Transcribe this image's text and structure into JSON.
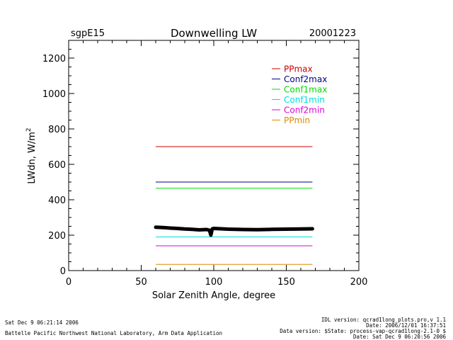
{
  "chart_data": {
    "type": "line",
    "site": "sgpE15",
    "title": "Downwelling LW",
    "date": "20001223",
    "xlabel": "Solar Zenith Angle, degree",
    "ylabel_main": "LWdn, W/m",
    "ylabel_sup": "2",
    "xlim": [
      0,
      200
    ],
    "ylim": [
      0,
      1300
    ],
    "x_ticks": [
      0,
      50,
      100,
      150,
      200
    ],
    "y_ticks": [
      0,
      200,
      400,
      600,
      800,
      1000,
      1200
    ],
    "x_minor_step": 10,
    "y_minor_step": 50,
    "legend_position": "top-right",
    "reference_lines": [
      {
        "name": "PPmax",
        "color": "#cc0000",
        "y": 700,
        "x_range": [
          60,
          168
        ]
      },
      {
        "name": "Conf2max",
        "color": "#00008b",
        "y": 500,
        "x_range": [
          60,
          168
        ]
      },
      {
        "name": "Conf1max",
        "color": "#00dd00",
        "y": 465,
        "x_range": [
          60,
          168
        ]
      },
      {
        "name": "Conf1min",
        "color": "#00dddd",
        "y": 190,
        "x_range": [
          60,
          168
        ]
      },
      {
        "name": "Conf2min",
        "color": "#dd00dd",
        "y": 140,
        "x_range": [
          60,
          168
        ]
      },
      {
        "name": "PPmin",
        "color": "#dd8800",
        "y": 35,
        "x_range": [
          60,
          168
        ]
      }
    ],
    "measured_series": {
      "color": "#000000",
      "points": [
        [
          60,
          245
        ],
        [
          65,
          243
        ],
        [
          70,
          240
        ],
        [
          75,
          238
        ],
        [
          80,
          235
        ],
        [
          85,
          233
        ],
        [
          90,
          230
        ],
        [
          95,
          232
        ],
        [
          97,
          228
        ],
        [
          98,
          200
        ],
        [
          99,
          236
        ],
        [
          100,
          238
        ],
        [
          105,
          236
        ],
        [
          110,
          234
        ],
        [
          120,
          232
        ],
        [
          130,
          231
        ],
        [
          140,
          233
        ],
        [
          150,
          234
        ],
        [
          160,
          235
        ],
        [
          168,
          236
        ]
      ]
    }
  },
  "footer": {
    "left_line1": "Sat Dec  9 06:21:14 2006",
    "left_line2": "Battelle Pacific Northwest National Laboratory, Arm Data Application",
    "right_line1": "IDL version: qcrad1long_plots.pro,v 1.1",
    "right_line2": "Date: 2006/12/01 16:37:51",
    "right_line3": "Data version: $State: process-vap-qcrad1long-2.1-0 $",
    "right_line4": "Date: Sat Dec  9 06:20:56 2006"
  }
}
